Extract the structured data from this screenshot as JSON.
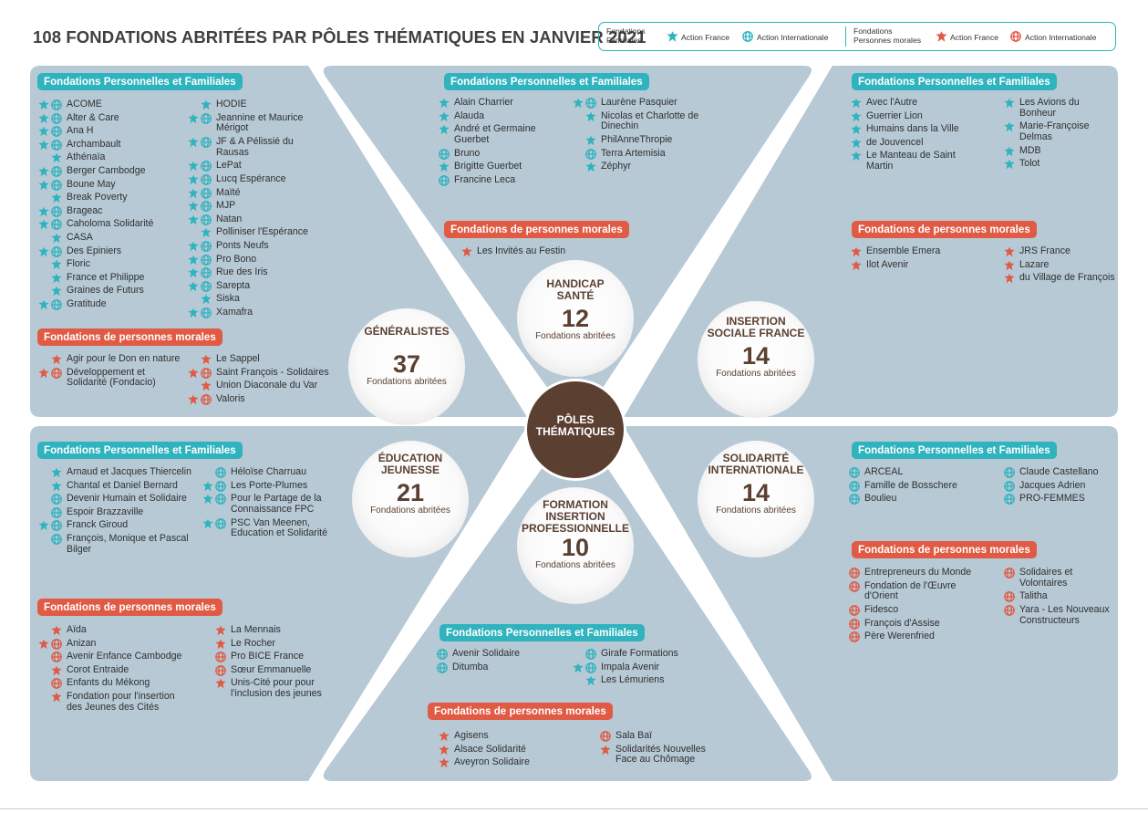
{
  "title": "108 FONDATIONS ABRITÉES PAR PÔLES THÉMATIQUES EN JANVIER 2021",
  "colors": {
    "teal": "#2fb3be",
    "red": "#e05a44",
    "panel": "#b7c9d5",
    "brown": "#5b4032"
  },
  "legend": {
    "familiales_label_1": "Fondations",
    "familiales_label_2": "Familiales",
    "action_france": "Action France",
    "action_internationale": "Action Internationale",
    "morales_label_1": "Fondations",
    "morales_label_2": "Personnes morales",
    "action_france_2": "Action France",
    "action_internationale_2": "Action Internationale"
  },
  "center": {
    "line1": "PÔLES",
    "line2": "THÉMATIQUES"
  },
  "poles": {
    "generalistes": {
      "l1": "GÉNÉRALISTES",
      "l2": "",
      "count": "37",
      "sub": "Fondations abritées"
    },
    "handicap": {
      "l1": "HANDICAP",
      "l2": "SANTÉ",
      "count": "12",
      "sub": "Fondations abritées"
    },
    "insertion": {
      "l1": "INSERTION",
      "l2": "SOCIALE FRANCE",
      "count": "14",
      "sub": "Fondations abritées"
    },
    "education": {
      "l1": "ÉDUCATION",
      "l2": "JEUNESSE",
      "count": "21",
      "sub": "Fondations abritées"
    },
    "formation": {
      "l1": "FORMATION",
      "l2": "INSERTION",
      "l3": "PROFESSIONNELLE",
      "count": "10",
      "sub": "Fondations abritées"
    },
    "solidarite": {
      "l1": "SOLIDARITÉ",
      "l2": "INTERNATIONALE",
      "count": "14",
      "sub": "Fondations abritées"
    }
  },
  "headers": {
    "pf": "Fondations Personnelles et Familiales",
    "pm": "Fondations de personnes morales"
  },
  "lists": {
    "gen_pf_a": [
      {
        "n": "ACOME",
        "i": "fi"
      },
      {
        "n": "Alter & Care",
        "i": "fi"
      },
      {
        "n": "Ana H",
        "i": "fi"
      },
      {
        "n": "Archambault",
        "i": "fi"
      },
      {
        "n": "Athénaïa",
        "i": "f"
      },
      {
        "n": "Berger Cambodge",
        "i": "fi"
      },
      {
        "n": "Boune May",
        "i": "fi"
      },
      {
        "n": "Break Poverty",
        "i": "f"
      },
      {
        "n": "Brageac",
        "i": "fi"
      },
      {
        "n": "Caholoma Solidarité",
        "i": "fi"
      },
      {
        "n": "CASA",
        "i": "f"
      },
      {
        "n": "Des Epiniers",
        "i": "fi"
      },
      {
        "n": "Floric",
        "i": "f"
      },
      {
        "n": "France et Philippe",
        "i": "f"
      },
      {
        "n": "Graines de Futurs",
        "i": "f"
      },
      {
        "n": "Gratitude",
        "i": "fi"
      }
    ],
    "gen_pf_b": [
      {
        "n": "HODIE",
        "i": "f"
      },
      {
        "n": "Jeannine et Maurice Mérigot",
        "i": "fi"
      },
      {
        "n": "JF & A Pélissié du Rausas",
        "i": "fi"
      },
      {
        "n": "LePat",
        "i": "fi"
      },
      {
        "n": "Lucq Espérance",
        "i": "fi"
      },
      {
        "n": "Maïté",
        "i": "fi"
      },
      {
        "n": "MJP",
        "i": "fi"
      },
      {
        "n": "Natan",
        "i": "fi"
      },
      {
        "n": "Polliniser l'Espérance",
        "i": "f"
      },
      {
        "n": "Ponts Neufs",
        "i": "fi"
      },
      {
        "n": "Pro Bono",
        "i": "fi"
      },
      {
        "n": "Rue des Iris",
        "i": "fi"
      },
      {
        "n": "Sarepta",
        "i": "fi"
      },
      {
        "n": "Siska",
        "i": "f"
      },
      {
        "n": "Xamafra",
        "i": "fi"
      }
    ],
    "gen_pm_a": [
      {
        "n": "Agir pour le Don en nature",
        "i": "f"
      },
      {
        "n": "Développement et Solidarité (Fondacio)",
        "i": "fi"
      }
    ],
    "gen_pm_b": [
      {
        "n": "Le Sappel",
        "i": "f"
      },
      {
        "n": "Saint François - Solidaires",
        "i": "fi"
      },
      {
        "n": "Union Diaconale du Var",
        "i": "f"
      },
      {
        "n": "Valoris",
        "i": "fi"
      }
    ],
    "han_pf_a": [
      {
        "n": "Alain Charrier",
        "i": "f"
      },
      {
        "n": "Alauda",
        "i": "f"
      },
      {
        "n": "André et Germaine Guerbet",
        "i": "f"
      },
      {
        "n": "Bruno",
        "i": "i"
      },
      {
        "n": "Brigitte Guerbet",
        "i": "f"
      },
      {
        "n": "Francine Leca",
        "i": "i"
      }
    ],
    "han_pf_b": [
      {
        "n": "Laurène Pasquier",
        "i": "fi"
      },
      {
        "n": "Nicolas et Charlotte de Dinechin",
        "i": "f"
      },
      {
        "n": "PhilAnneThropie",
        "i": "f"
      },
      {
        "n": "Terra Artemisia",
        "i": "i"
      },
      {
        "n": "Zéphyr",
        "i": "f"
      }
    ],
    "han_pm": [
      {
        "n": "Les Invités au Festin",
        "i": "f"
      }
    ],
    "ins_pf_a": [
      {
        "n": "Avec l'Autre",
        "i": "f"
      },
      {
        "n": "Guerrier Lion",
        "i": "f"
      },
      {
        "n": "Humains dans la Ville",
        "i": "f"
      },
      {
        "n": "de Jouvencel",
        "i": "f"
      },
      {
        "n": "Le Manteau de Saint Martin",
        "i": "f"
      }
    ],
    "ins_pf_b": [
      {
        "n": "Les Avions du Bonheur",
        "i": "f"
      },
      {
        "n": "Marie-Françoise Delmas",
        "i": "f"
      },
      {
        "n": "MDB",
        "i": "f"
      },
      {
        "n": "Tolot",
        "i": "f"
      }
    ],
    "ins_pm_a": [
      {
        "n": "Ensemble Emera",
        "i": "f"
      },
      {
        "n": "Ilot Avenir",
        "i": "f"
      }
    ],
    "ins_pm_b": [
      {
        "n": "JRS France",
        "i": "f"
      },
      {
        "n": "Lazare",
        "i": "f"
      },
      {
        "n": "du Village de François",
        "i": "f"
      }
    ],
    "edu_pf_a": [
      {
        "n": "Arnaud et Jacques Thiercelin",
        "i": "f"
      },
      {
        "n": "Chantal et Daniel Bernard",
        "i": "f"
      },
      {
        "n": "Devenir Humain et Solidaire",
        "i": "i"
      },
      {
        "n": "Espoir Brazzaville",
        "i": "i"
      },
      {
        "n": "Franck Giroud",
        "i": "fi"
      },
      {
        "n": "François, Monique et Pascal Bilger",
        "i": "i"
      }
    ],
    "edu_pf_b": [
      {
        "n": "Héloïse Charruau",
        "i": "i"
      },
      {
        "n": "Les Porte-Plumes",
        "i": "fi"
      },
      {
        "n": "Pour le Partage de la Connaissance FPC",
        "i": "fi"
      },
      {
        "n": "PSC Van Meenen, Education et Solidarité",
        "i": "fi"
      }
    ],
    "edu_pm_a": [
      {
        "n": "Aïda",
        "i": "f"
      },
      {
        "n": "Anizan",
        "i": "fi"
      },
      {
        "n": "Avenir Enfance Cambodge",
        "i": "i"
      },
      {
        "n": "Corot Entraide",
        "i": "f"
      },
      {
        "n": "Enfants du Mékong",
        "i": "i"
      },
      {
        "n": "Fondation pour l'insertion des Jeunes des Cités",
        "i": "f"
      }
    ],
    "edu_pm_b": [
      {
        "n": "La Mennais",
        "i": "f"
      },
      {
        "n": "Le Rocher",
        "i": "f"
      },
      {
        "n": "Pro BICE France",
        "i": "i"
      },
      {
        "n": "Sœur Emmanuelle",
        "i": "i"
      },
      {
        "n": "Unis-Cité pour pour l'inclusion des jeunes",
        "i": "f"
      }
    ],
    "for_pf_a": [
      {
        "n": "Avenir Solidaire",
        "i": "i"
      },
      {
        "n": "Ditumba",
        "i": "i"
      }
    ],
    "for_pf_b": [
      {
        "n": "Girafe Formations",
        "i": "i"
      },
      {
        "n": "Impala Avenir",
        "i": "fi"
      },
      {
        "n": "Les Lémuriens",
        "i": "f"
      }
    ],
    "for_pm_a": [
      {
        "n": "Agisens",
        "i": "f"
      },
      {
        "n": "Alsace Solidarité",
        "i": "f"
      },
      {
        "n": "Aveyron Solidaire",
        "i": "f"
      }
    ],
    "for_pm_b": [
      {
        "n": "Sala Baï",
        "i": "i"
      },
      {
        "n": "Solidarités Nouvelles Face au Chômage",
        "i": "f"
      }
    ],
    "sol_pf_a": [
      {
        "n": "ARCEAL",
        "i": "i"
      },
      {
        "n": "Famille de Bosschere",
        "i": "i"
      },
      {
        "n": "Boulieu",
        "i": "i"
      }
    ],
    "sol_pf_b": [
      {
        "n": "Claude Castellano",
        "i": "i"
      },
      {
        "n": "Jacques Adrien",
        "i": "i"
      },
      {
        "n": "PRO-FEMMES",
        "i": "i"
      }
    ],
    "sol_pm_a": [
      {
        "n": "Entrepreneurs du Monde",
        "i": "i"
      },
      {
        "n": "Fondation de l'Œuvre d'Orient",
        "i": "i"
      },
      {
        "n": "Fidesco",
        "i": "i"
      },
      {
        "n": "François d'Assise",
        "i": "i"
      },
      {
        "n": "Père Werenfried",
        "i": "i"
      }
    ],
    "sol_pm_b": [
      {
        "n": "Solidaires et Volontaires",
        "i": "i"
      },
      {
        "n": "Talitha",
        "i": "i"
      },
      {
        "n": "Yara - Les Nouveaux Constructeurs",
        "i": "i"
      }
    ]
  }
}
